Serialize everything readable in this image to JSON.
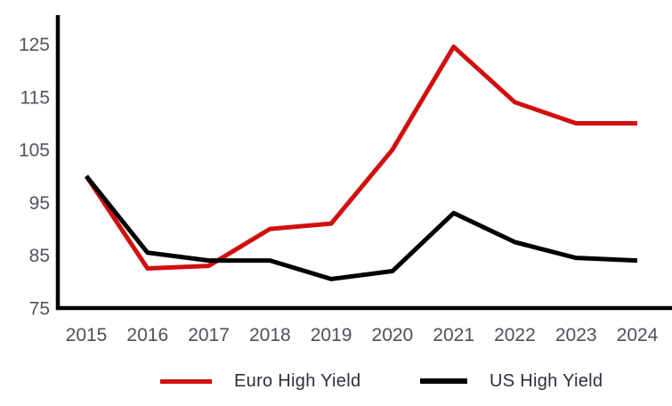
{
  "chart_data": {
    "type": "line",
    "title": "",
    "xlabel": "",
    "ylabel": "",
    "x": [
      2015,
      2016,
      2017,
      2018,
      2019,
      2020,
      2021,
      2022,
      2023,
      2024
    ],
    "series": [
      {
        "name": "Euro High Yield",
        "color": "#d20f0f",
        "values": [
          100,
          82.5,
          83,
          90,
          91,
          105,
          124.5,
          114,
          110,
          110
        ]
      },
      {
        "name": "US High Yield",
        "color": "#000000",
        "values": [
          100,
          85.5,
          84,
          84,
          80.5,
          82,
          93,
          87.5,
          84.5,
          84
        ]
      }
    ],
    "yticks": [
      75,
      85,
      95,
      105,
      115,
      125
    ],
    "ylim": [
      75,
      130.5
    ],
    "grid": false,
    "legend_position": "bottom"
  },
  "style": {
    "axis_line_color": "#000000",
    "tick_label_color": "#54545e",
    "x_label_color": "#4f4f59",
    "legend_text_color": "#2e2e3d",
    "background_color": "#ffffff"
  }
}
